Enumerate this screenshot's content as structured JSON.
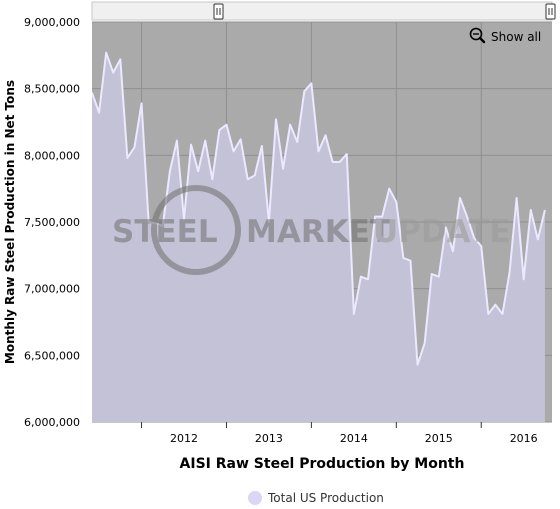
{
  "colors": {
    "plot_bg": "#aaaaaa",
    "area_fill": "#c4c2d6",
    "line": "#ece8ff",
    "grid": "#8f8f8f",
    "legend_marker": "#d9d6f6",
    "scrollbar": "#f0f0f0",
    "handle": "#ffffff"
  },
  "watermark": {
    "part1": "STEEL",
    "part2": "MARKET",
    "part3": "UPDATE"
  },
  "zoom": {
    "show_all_label": "Show all",
    "icon": "magnifier-minus-icon"
  },
  "chart_data": {
    "type": "area",
    "xlabel": "AISI Raw Steel Production by Month",
    "ylabel": "Monthly Raw Steel Production in Net Tons",
    "ylim": [
      6000000,
      9000000
    ],
    "y_ticks": [
      6000000,
      6500000,
      7000000,
      7500000,
      8000000,
      8500000,
      9000000
    ],
    "y_tick_labels": [
      "6,000,000",
      "6,500,000",
      "7,000,000",
      "7,500,000",
      "8,000,000",
      "8,500,000",
      "9,000,000"
    ],
    "xlim": [
      "2011-06",
      "2016-11"
    ],
    "x_ticks": [
      "2012-01",
      "2013-01",
      "2014-01",
      "2015-01",
      "2016-01"
    ],
    "year_labels": [
      {
        "label": "2012",
        "at": "2012-07"
      },
      {
        "label": "2013",
        "at": "2013-07"
      },
      {
        "label": "2014",
        "at": "2014-07"
      },
      {
        "label": "2015",
        "at": "2015-07"
      },
      {
        "label": "2016",
        "at": "2016-07"
      }
    ],
    "grid": true,
    "legend_position": "bottom-center",
    "series": [
      {
        "name": "Total US Production",
        "points": [
          [
            "2011-06",
            8470000
          ],
          [
            "2011-07",
            8320000
          ],
          [
            "2011-08",
            8770000
          ],
          [
            "2011-09",
            8620000
          ],
          [
            "2011-10",
            8720000
          ],
          [
            "2011-11",
            7980000
          ],
          [
            "2011-12",
            8060000
          ],
          [
            "2012-01",
            8390000
          ],
          [
            "2012-02",
            7500000
          ],
          [
            "2012-03",
            7490000
          ],
          [
            "2012-04",
            7470000
          ],
          [
            "2012-05",
            7880000
          ],
          [
            "2012-06",
            8110000
          ],
          [
            "2012-07",
            7520000
          ],
          [
            "2012-08",
            8080000
          ],
          [
            "2012-09",
            7880000
          ],
          [
            "2012-10",
            8110000
          ],
          [
            "2012-11",
            7820000
          ],
          [
            "2012-12",
            8190000
          ],
          [
            "2013-01",
            8230000
          ],
          [
            "2013-02",
            8030000
          ],
          [
            "2013-03",
            8120000
          ],
          [
            "2013-04",
            7820000
          ],
          [
            "2013-05",
            7850000
          ],
          [
            "2013-06",
            8070000
          ],
          [
            "2013-07",
            7500000
          ],
          [
            "2013-08",
            8270000
          ],
          [
            "2013-09",
            7900000
          ],
          [
            "2013-10",
            8230000
          ],
          [
            "2013-11",
            8100000
          ],
          [
            "2013-12",
            8480000
          ],
          [
            "2014-01",
            8540000
          ],
          [
            "2014-02",
            8030000
          ],
          [
            "2014-03",
            8150000
          ],
          [
            "2014-04",
            7950000
          ],
          [
            "2014-05",
            7950000
          ],
          [
            "2014-06",
            8010000
          ],
          [
            "2014-07",
            6810000
          ],
          [
            "2014-08",
            7090000
          ],
          [
            "2014-09",
            7070000
          ],
          [
            "2014-10",
            7540000
          ],
          [
            "2014-11",
            7540000
          ],
          [
            "2014-12",
            7750000
          ],
          [
            "2015-01",
            7650000
          ],
          [
            "2015-02",
            7230000
          ],
          [
            "2015-03",
            7210000
          ],
          [
            "2015-04",
            6430000
          ],
          [
            "2015-05",
            6590000
          ],
          [
            "2015-06",
            7110000
          ],
          [
            "2015-07",
            7090000
          ],
          [
            "2015-08",
            7460000
          ],
          [
            "2015-09",
            7280000
          ],
          [
            "2015-10",
            7680000
          ],
          [
            "2015-11",
            7540000
          ],
          [
            "2015-12",
            7380000
          ],
          [
            "2016-01",
            7320000
          ],
          [
            "2016-02",
            6810000
          ],
          [
            "2016-03",
            6880000
          ],
          [
            "2016-04",
            6810000
          ],
          [
            "2016-05",
            7120000
          ],
          [
            "2016-06",
            7680000
          ],
          [
            "2016-07",
            7070000
          ],
          [
            "2016-08",
            7590000
          ],
          [
            "2016-09",
            7370000
          ],
          [
            "2016-10",
            7590000
          ]
        ]
      }
    ]
  }
}
